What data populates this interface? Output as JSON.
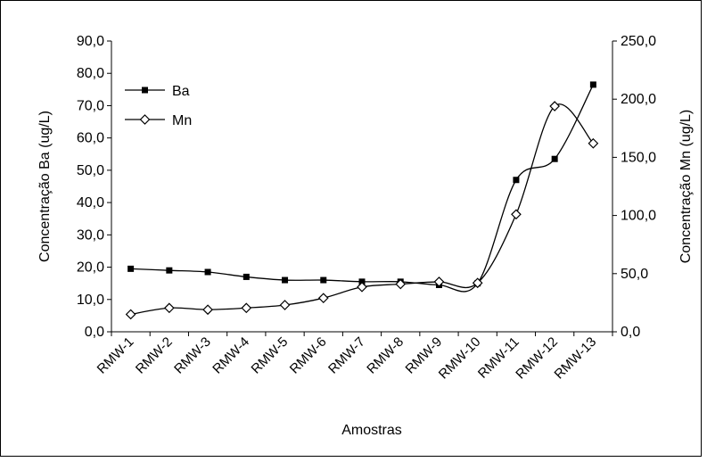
{
  "chart_data": {
    "type": "line",
    "categories": [
      "RMW-1",
      "RMW-2",
      "RMW-3",
      "RMW-4",
      "RMW-5",
      "RMW-6",
      "RMW-7",
      "RMW-8",
      "RMW-9",
      "RMW-10",
      "RMW-11",
      "RMW-12",
      "RMW-13"
    ],
    "xlabel": "Amostras",
    "ylabel_left": "Concentração Ba (ug/L)",
    "ylabel_right": "Concentração Mn (ug/L)",
    "ylim_left": [
      0,
      90
    ],
    "ylim_right": [
      0,
      250
    ],
    "yticks_left": [
      "0,0",
      "10,0",
      "20,0",
      "30,0",
      "40,0",
      "50,0",
      "60,0",
      "70,0",
      "80,0",
      "90,0"
    ],
    "yticks_right": [
      "0,0",
      "50,0",
      "100,0",
      "150,0",
      "200,0",
      "250,0"
    ],
    "grid": false,
    "legend_position": "top-left",
    "series": [
      {
        "name": "Ba",
        "axis": "left",
        "marker": "filled-square",
        "values": [
          19.5,
          19.0,
          18.5,
          17.0,
          16.0,
          16.0,
          15.5,
          15.5,
          14.5,
          15.0,
          47.0,
          53.5,
          76.5
        ]
      },
      {
        "name": "Mn",
        "axis": "right",
        "marker": "open-diamond",
        "values": [
          15.0,
          20.5,
          19.0,
          20.5,
          23.0,
          29.0,
          38.5,
          41.0,
          43.0,
          42.0,
          101.0,
          194.0,
          162.0
        ]
      }
    ]
  }
}
